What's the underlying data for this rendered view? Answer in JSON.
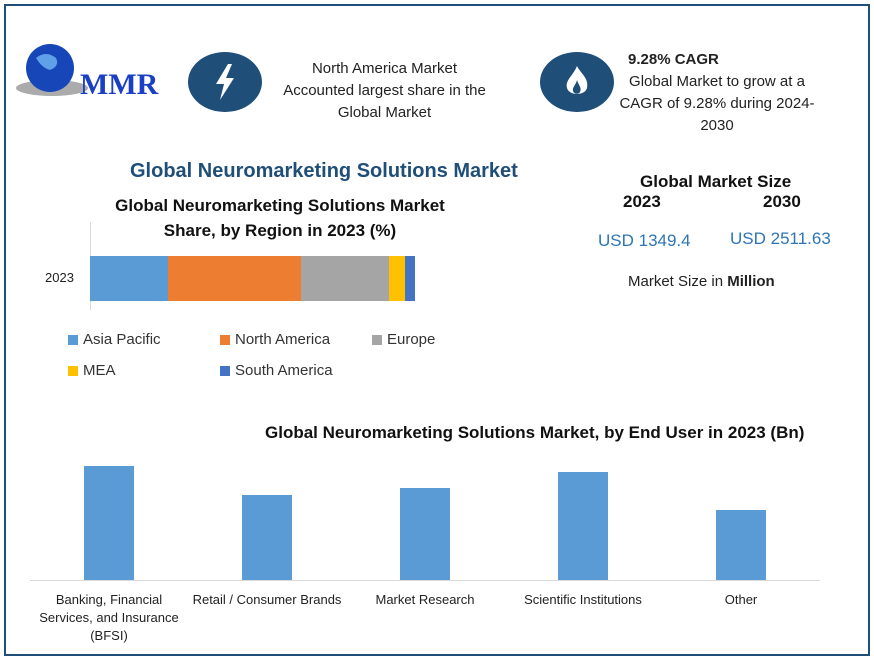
{
  "logo": {
    "text": "MMR"
  },
  "header": {
    "info1": {
      "icon": "lightning-icon",
      "line1": "North America Market",
      "line2": "Accounted largest share in the",
      "line3": "Global Market"
    },
    "info2": {
      "icon": "flame-icon",
      "title": "9.28% CAGR",
      "line1": "Global Market to grow at a",
      "line2": "CAGR of 9.28% during 2024-",
      "line3": "2030"
    }
  },
  "main_title": "Global Neuromarketing Solutions Market",
  "market_size": {
    "title": "Global Market Size",
    "year1": "2023",
    "year2": "2030",
    "value1": "USD 1349.4",
    "value2": "USD 2511.63",
    "unit_prefix": "Market Size in ",
    "unit": "Million"
  },
  "colors": {
    "frame": "#1f4e79",
    "title": "#1f4e79",
    "value": "#2e75b6",
    "bar": "#5b9bd5"
  },
  "chart_data": [
    {
      "type": "bar",
      "orientation": "horizontal-stacked",
      "title_line1": "Global Neuromarketing Solutions Market",
      "title_line2": "Share, by Region in 2023 (%)",
      "categories": [
        "2023"
      ],
      "series": [
        {
          "name": "Asia Pacific",
          "values": [
            24
          ],
          "color": "#5b9bd5"
        },
        {
          "name": "North America",
          "values": [
            41
          ],
          "color": "#ed7d31"
        },
        {
          "name": "Europe",
          "values": [
            27
          ],
          "color": "#a5a5a5"
        },
        {
          "name": "MEA",
          "values": [
            5
          ],
          "color": "#ffc000"
        },
        {
          "name": "South America",
          "values": [
            3
          ],
          "color": "#4472c4"
        }
      ],
      "legend": "bottom"
    },
    {
      "type": "bar",
      "title": "Global Neuromarketing Solutions Market, by End User  in 2023 (Bn)",
      "categories": [
        "Banking, Financial Services, and Insurance (BFSI)",
        "Retail / Consumer Brands",
        "Market Research",
        "Scientific Institutions",
        "Other"
      ],
      "values": [
        114,
        85,
        92,
        108,
        70
      ],
      "ylim": [
        0,
        120
      ],
      "color": "#5b9bd5"
    }
  ]
}
